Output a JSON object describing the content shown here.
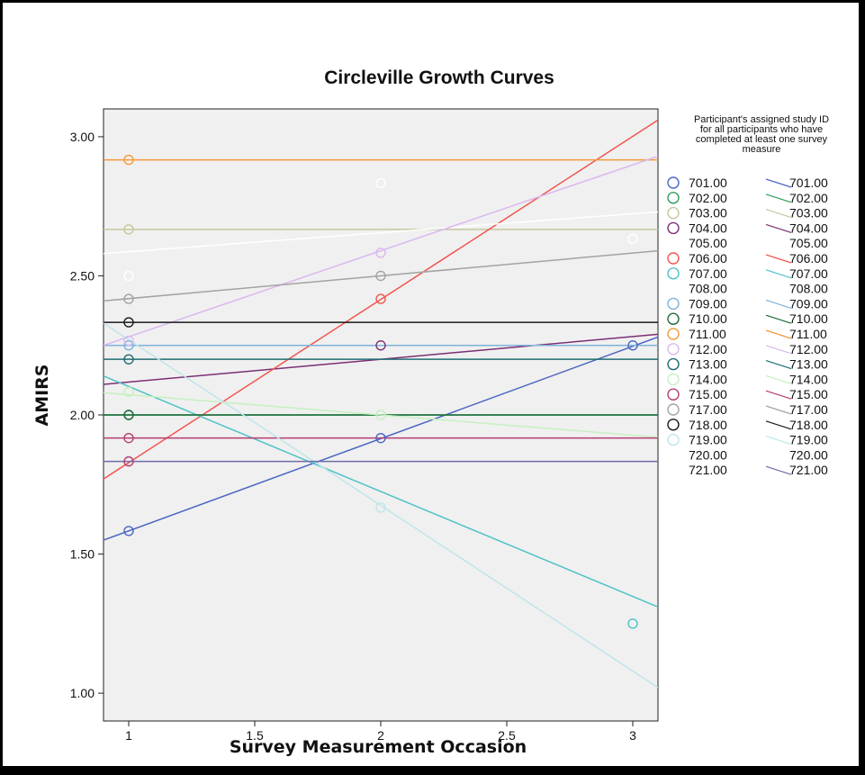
{
  "chart_data": {
    "type": "scatter",
    "title": "Circleville Growth Curves",
    "xlabel": "Survey Measurement Occasion",
    "ylabel": "AMIRS",
    "xlim": [
      0.9,
      3.1
    ],
    "ylim": [
      0.9,
      3.1
    ],
    "xticks": [
      {
        "value": 1,
        "label": "1"
      },
      {
        "value": 1.5,
        "label": "1.5"
      },
      {
        "value": 2,
        "label": "2"
      },
      {
        "value": 2.5,
        "label": "2.5"
      },
      {
        "value": 3,
        "label": "3"
      }
    ],
    "yticks": [
      {
        "value": 1.0,
        "label": "1.00"
      },
      {
        "value": 1.5,
        "label": "1.50"
      },
      {
        "value": 2.0,
        "label": "2.00"
      },
      {
        "value": 2.5,
        "label": "2.50"
      },
      {
        "value": 3.0,
        "label": "3.00"
      }
    ],
    "grid": false,
    "plot_background": "#f0f0f0",
    "legend": {
      "title_lines": [
        "Participant's assigned study ID",
        "for all participants who have",
        "completed at least one survey",
        "measure"
      ],
      "placement": "right"
    },
    "series": [
      {
        "name": "701.00",
        "color": "#4a66c2",
        "points": [
          [
            1,
            1.583
          ],
          [
            2,
            1.917
          ],
          [
            3,
            2.25
          ]
        ],
        "fit_line": [
          [
            0.9,
            1.55
          ],
          [
            3.1,
            2.28
          ]
        ]
      },
      {
        "name": "702.00",
        "color": "#2e9e5e",
        "points": [
          [
            1,
            2.0
          ]
        ],
        "fit_line": [
          [
            0.9,
            2.0
          ],
          [
            3.1,
            2.0
          ]
        ]
      },
      {
        "name": "703.00",
        "color": "#c7c79e",
        "points": [
          [
            1,
            2.667
          ]
        ],
        "fit_line": [
          [
            0.9,
            2.667
          ],
          [
            3.1,
            2.667
          ]
        ]
      },
      {
        "name": "704.00",
        "color": "#7b2f74",
        "points": [
          [
            2,
            2.25
          ]
        ],
        "fit_line": [
          [
            0.9,
            2.11
          ],
          [
            3.1,
            2.29
          ]
        ]
      },
      {
        "name": "705.00",
        "color": "#f5ef82",
        "points": [],
        "fit_line": []
      },
      {
        "name": "706.00",
        "color": "#f0564f",
        "points": [
          [
            2,
            2.417
          ]
        ],
        "fit_line": [
          [
            0.9,
            1.77
          ],
          [
            3.1,
            3.06
          ]
        ]
      },
      {
        "name": "707.00",
        "color": "#4fc2c8",
        "points": [
          [
            3,
            1.25
          ]
        ],
        "fit_line": [
          [
            0.9,
            2.14
          ],
          [
            3.1,
            1.31
          ]
        ]
      },
      {
        "name": "708.00",
        "color": "#ffffff",
        "points": [
          [
            1,
            2.5
          ],
          [
            2,
            2.833
          ],
          [
            3,
            2.633
          ]
        ],
        "fit_line": [
          [
            0.9,
            2.58
          ],
          [
            3.1,
            2.73
          ]
        ]
      },
      {
        "name": "709.00",
        "color": "#7db3dc",
        "points": [
          [
            1,
            2.25
          ]
        ],
        "fit_line": [
          [
            0.9,
            2.25
          ],
          [
            3.1,
            2.25
          ]
        ]
      },
      {
        "name": "710.00",
        "color": "#1f6b3a",
        "points": [
          [
            1,
            2.0
          ]
        ],
        "fit_line": [
          [
            0.9,
            2.0
          ],
          [
            3.1,
            2.0
          ]
        ]
      },
      {
        "name": "711.00",
        "color": "#f29a3c",
        "points": [
          [
            1,
            2.917
          ]
        ],
        "fit_line": [
          [
            0.9,
            2.917
          ],
          [
            3.1,
            2.917
          ]
        ]
      },
      {
        "name": "712.00",
        "color": "#d9b8ee",
        "points": [
          [
            1,
            2.267
          ],
          [
            2,
            2.583
          ]
        ],
        "fit_line": [
          [
            0.9,
            2.25
          ],
          [
            3.1,
            2.93
          ]
        ]
      },
      {
        "name": "713.00",
        "color": "#1f6e73",
        "points": [
          [
            1,
            2.2
          ]
        ],
        "fit_line": [
          [
            0.9,
            2.2
          ],
          [
            3.1,
            2.2
          ]
        ]
      },
      {
        "name": "714.00",
        "color": "#c6f0c0",
        "points": [
          [
            1,
            2.083
          ],
          [
            2,
            2.0
          ]
        ],
        "fit_line": [
          [
            0.9,
            2.08
          ],
          [
            3.1,
            1.92
          ]
        ]
      },
      {
        "name": "715.00",
        "color": "#b53d73",
        "points": [
          [
            1,
            1.917
          ],
          [
            1,
            1.833
          ]
        ],
        "fit_line": [
          [
            0.9,
            1.917
          ],
          [
            3.1,
            1.917
          ]
        ]
      },
      {
        "name": "717.00",
        "color": "#a3a3a3",
        "points": [
          [
            1,
            2.417
          ],
          [
            2,
            2.5
          ]
        ],
        "fit_line": [
          [
            0.9,
            2.41
          ],
          [
            3.1,
            2.59
          ]
        ]
      },
      {
        "name": "718.00",
        "color": "#1a1a1a",
        "points": [
          [
            1,
            2.333
          ]
        ],
        "fit_line": [
          [
            0.9,
            2.333
          ],
          [
            3.1,
            2.333
          ]
        ]
      },
      {
        "name": "719.00",
        "color": "#bde6ea",
        "points": [
          [
            2,
            1.667
          ]
        ],
        "fit_line": [
          [
            0.9,
            2.33
          ],
          [
            3.1,
            1.02
          ]
        ]
      },
      {
        "name": "720.00",
        "color": "#f0f0f0",
        "points": [],
        "fit_line": []
      },
      {
        "name": "721.00",
        "color": "#6f6ca8",
        "points": [],
        "fit_line": [
          [
            0.9,
            1.833
          ],
          [
            3.1,
            1.833
          ]
        ]
      }
    ]
  }
}
